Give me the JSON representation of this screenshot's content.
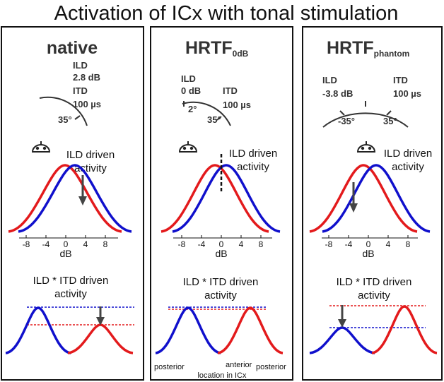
{
  "title": "Activation of ICx with tonal stimulation",
  "panels": [
    {
      "title": "native",
      "ild_label": "ILD",
      "ild_value": "2.8 dB",
      "itd_label": "ITD",
      "itd_value": "100 µs",
      "angle_right": "35°",
      "activity_label_1": "ILD driven",
      "activity_label_2": "activity",
      "combined_label_1": "ILD * ITD driven",
      "combined_label_2": "activity"
    },
    {
      "title": "HRTF",
      "title_sub": "0dB",
      "ild_label": "ILD",
      "ild_value": "0 dB",
      "itd_label": "ITD",
      "itd_value": "100 µs",
      "angle_left": "2°",
      "angle_right": "35°",
      "activity_label_1": "ILD driven",
      "activity_label_2": "activity",
      "combined_label_1": "ILD * ITD driven",
      "combined_label_2": "activity",
      "loc_posterior_left": "posterior",
      "loc_anterior": "anterior",
      "loc_posterior_right": "posterior",
      "loc_caption": "location in ICx"
    },
    {
      "title": "HRTF",
      "title_sub": "phantom",
      "ild_label": "ILD",
      "ild_value": "-3.8 dB",
      "itd_label": "ITD",
      "itd_value": "100 µs",
      "angle_left": "-35°",
      "angle_right": "35°",
      "activity_label_1": "ILD driven",
      "activity_label_2": "activity",
      "combined_label_1": "ILD * ITD driven",
      "combined_label_2": "activity"
    }
  ],
  "axis": {
    "ticks": [
      "-8",
      "-4",
      "0",
      "4",
      "8"
    ],
    "label": "dB"
  },
  "colors": {
    "left": "#e31a1c",
    "right": "#1010cc",
    "frame": "#111111",
    "arrow": "#444444"
  }
}
